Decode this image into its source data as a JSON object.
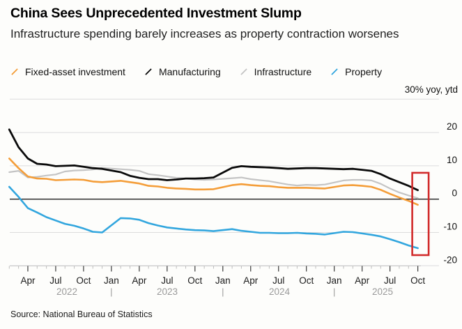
{
  "header": {
    "title": "China Sees Unprecedented Investment Slump",
    "subtitle": "Infrastructure spending barely increases as property contraction worsenes"
  },
  "legend": {
    "items": [
      {
        "label": "Fixed-asset investment",
        "color": "#F49D38"
      },
      {
        "label": "Manufacturing",
        "color": "#0A0A0A"
      },
      {
        "label": "Infrastructure",
        "color": "#C4C4C4"
      },
      {
        "label": "Property",
        "color": "#32A6DE"
      }
    ]
  },
  "source": "Source: National Bureau of Statistics",
  "chart_data": {
    "type": "line",
    "title": "China Sees Unprecedented Investment Slump",
    "subtitle": "Infrastructure spending barely increases as property contraction worsenes",
    "unit_label": "30% yoy, ytd",
    "ylim": [
      -20,
      30
    ],
    "grid_values": [
      30,
      20,
      10,
      0,
      -10,
      -20
    ],
    "yticks": [
      20,
      10,
      0,
      -10,
      -20
    ],
    "grid_on": true,
    "legend_position": "top",
    "year_labels": [
      "2022",
      "2023",
      "2024",
      "2025"
    ],
    "months": [
      "2022-02",
      "2022-03",
      "2022-04",
      "2022-05",
      "2022-06",
      "2022-07",
      "2022-08",
      "2022-09",
      "2022-10",
      "2022-11",
      "2022-12",
      "2023-01",
      "2023-02",
      "2023-03",
      "2023-04",
      "2023-05",
      "2023-06",
      "2023-07",
      "2023-08",
      "2023-09",
      "2023-10",
      "2023-11",
      "2023-12",
      "2024-01",
      "2024-02",
      "2024-03",
      "2024-04",
      "2024-05",
      "2024-06",
      "2024-07",
      "2024-08",
      "2024-09",
      "2024-10",
      "2024-11",
      "2024-12",
      "2025-01",
      "2025-02",
      "2025-03",
      "2025-04",
      "2025-05",
      "2025-06",
      "2025-07",
      "2025-08",
      "2025-09",
      "2025-10"
    ],
    "series": [
      {
        "name": "Fixed-asset investment",
        "color": "#F49D38",
        "values": [
          12.2,
          9.3,
          6.8,
          6.2,
          6.1,
          5.7,
          5.8,
          5.9,
          5.8,
          5.3,
          5.1,
          null,
          5.5,
          5.1,
          4.7,
          4.0,
          3.8,
          3.4,
          3.2,
          3.1,
          2.9,
          2.9,
          3.0,
          null,
          4.2,
          4.5,
          4.2,
          4.0,
          3.9,
          3.6,
          3.4,
          3.4,
          3.4,
          3.3,
          3.2,
          null,
          4.1,
          4.2,
          4.0,
          3.7,
          2.8,
          1.6,
          0.5,
          -0.5,
          -1.7
        ]
      },
      {
        "name": "Manufacturing",
        "color": "#0A0A0A",
        "values": [
          20.9,
          15.6,
          12.2,
          10.6,
          10.4,
          9.9,
          10.0,
          10.1,
          9.7,
          9.3,
          9.1,
          null,
          8.1,
          7.0,
          6.4,
          6.0,
          6.0,
          5.7,
          5.9,
          6.2,
          6.2,
          6.3,
          6.5,
          null,
          9.4,
          9.9,
          9.7,
          9.6,
          9.5,
          9.3,
          9.1,
          9.2,
          9.3,
          9.3,
          9.2,
          null,
          9.0,
          9.1,
          8.8,
          8.5,
          7.5,
          6.2,
          5.1,
          4.0,
          2.7
        ]
      },
      {
        "name": "Infrastructure",
        "color": "#C4C4C4",
        "values": [
          8.1,
          8.5,
          6.5,
          6.7,
          7.1,
          7.4,
          8.3,
          8.6,
          8.7,
          8.9,
          9.4,
          null,
          9.0,
          8.8,
          8.5,
          7.5,
          7.2,
          6.8,
          6.4,
          6.2,
          5.9,
          5.8,
          5.9,
          null,
          6.3,
          6.5,
          6.0,
          5.7,
          5.4,
          4.9,
          4.4,
          4.1,
          4.3,
          4.2,
          4.4,
          null,
          5.6,
          5.8,
          5.8,
          5.6,
          4.6,
          3.2,
          2.0,
          1.1,
          0.3
        ]
      },
      {
        "name": "Property",
        "color": "#32A6DE",
        "values": [
          3.7,
          0.7,
          -2.7,
          -4.0,
          -5.4,
          -6.4,
          -7.4,
          -8.0,
          -8.8,
          -9.8,
          -10.0,
          null,
          -5.7,
          -5.8,
          -6.2,
          -7.2,
          -7.9,
          -8.5,
          -8.8,
          -9.1,
          -9.3,
          -9.4,
          -9.6,
          null,
          -9.0,
          -9.5,
          -9.8,
          -10.1,
          -10.1,
          -10.2,
          -10.2,
          -10.1,
          -10.3,
          -10.4,
          -10.6,
          null,
          -9.8,
          -9.9,
          -10.3,
          -10.7,
          -11.2,
          -12.0,
          -12.9,
          -13.9,
          -14.7
        ]
      }
    ],
    "highlight_box": {
      "color": "#D12A2A",
      "y_top": 7.9,
      "y_bottom": -16.8
    }
  }
}
